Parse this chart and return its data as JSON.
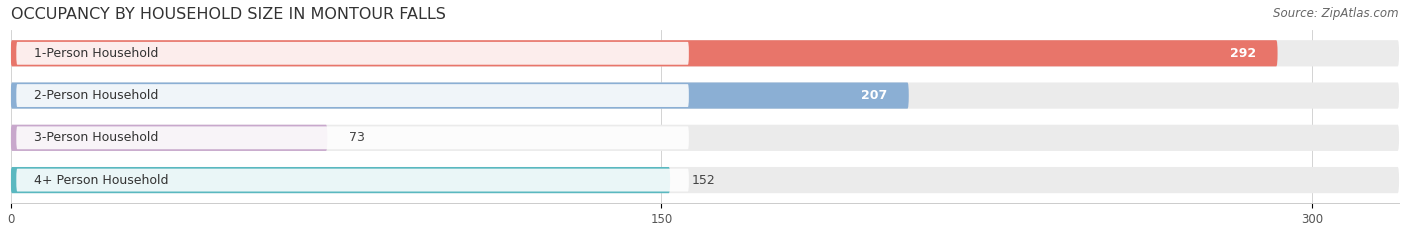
{
  "title": "OCCUPANCY BY HOUSEHOLD SIZE IN MONTOUR FALLS",
  "source": "Source: ZipAtlas.com",
  "categories": [
    "1-Person Household",
    "2-Person Household",
    "3-Person Household",
    "4+ Person Household"
  ],
  "values": [
    292,
    207,
    73,
    152
  ],
  "bar_colors": [
    "#E8756A",
    "#8BAFD4",
    "#C8A8CC",
    "#5AB8C0"
  ],
  "value_inside": [
    true,
    true,
    false,
    false
  ],
  "xlim_max": 320,
  "xticks": [
    0,
    150,
    300
  ],
  "bg_color": "#ffffff",
  "bar_bg_color": "#ebebeb",
  "title_fontsize": 11.5,
  "source_fontsize": 8.5,
  "label_fontsize": 9,
  "value_fontsize": 9,
  "bar_height": 0.62
}
